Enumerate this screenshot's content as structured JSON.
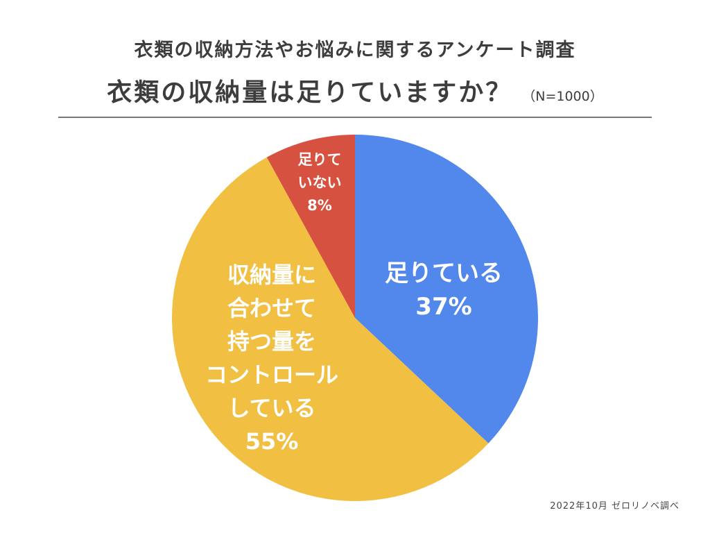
{
  "header": {
    "survey_title": "衣類の収納方法やお悩みに関するアンケート調査",
    "question": "衣類の収納量は足りていますか？",
    "sample_size": "（N=1000）"
  },
  "chart_data": {
    "type": "pie",
    "title": "衣類の収納量は足りていますか？",
    "slices": [
      {
        "label_lines": [
          "足りている"
        ],
        "value": 37,
        "value_label": "37%",
        "color": "#5287ec"
      },
      {
        "label_lines": [
          "収納量に",
          "合わせて",
          "持つ量を",
          "コントロール",
          "している"
        ],
        "value": 55,
        "value_label": "55%",
        "color": "#f1bf42"
      },
      {
        "label_lines": [
          "足りて",
          "いない"
        ],
        "value": 8,
        "value_label": "8%",
        "color": "#d75140"
      }
    ],
    "start_angle_deg": 0,
    "direction": "clockwise",
    "legend": "none",
    "labels": "inside"
  },
  "footer": {
    "source": "2022年10月 ゼロリノベ調べ"
  }
}
